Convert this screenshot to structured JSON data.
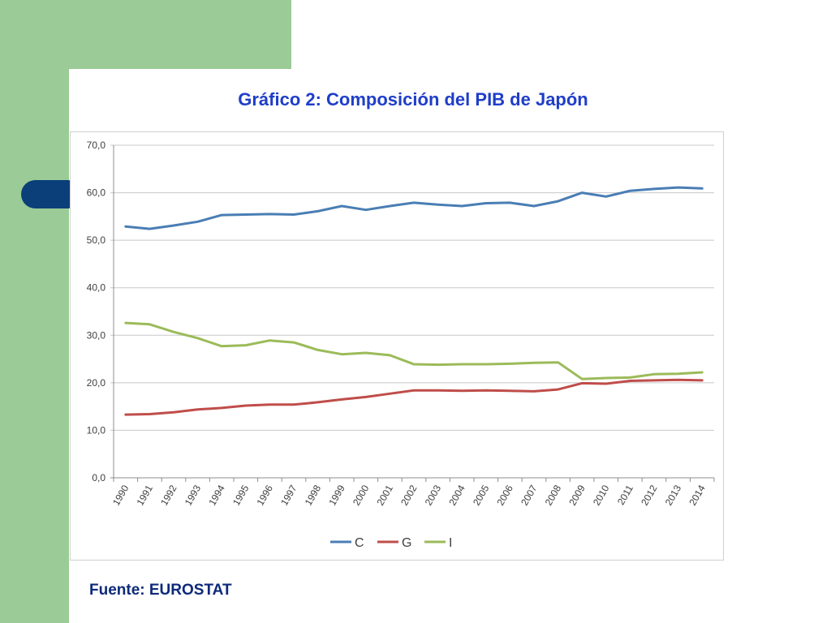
{
  "slide": {
    "title": "Gráfico 2: Composición del PIB de Japón",
    "source": "Fuente: EUROSTAT"
  },
  "colors": {
    "background_band": "#9bcb96",
    "accent_pill": "#0b3f7a",
    "title": "#1f3ec8",
    "series_C": "#4a7eb4",
    "series_G": "#bf4d4a",
    "series_I": "#9bbb59"
  },
  "chart_data": {
    "type": "line",
    "title": "",
    "xlabel": "",
    "ylabel": "",
    "ylim": [
      0,
      70
    ],
    "yticks": [
      "0,0",
      "10,0",
      "20,0",
      "30,0",
      "40,0",
      "50,0",
      "60,0",
      "70,0"
    ],
    "grid": true,
    "legend": "bottom",
    "categories": [
      "1990",
      "1991",
      "1992",
      "1993",
      "1994",
      "1995",
      "1996",
      "1997",
      "1998",
      "1999",
      "2000",
      "2001",
      "2002",
      "2003",
      "2004",
      "2005",
      "2006",
      "2007",
      "2008",
      "2009",
      "2010",
      "2011",
      "2012",
      "2013",
      "2014"
    ],
    "series": [
      {
        "name": "C",
        "color": "#4a7eb4",
        "values": [
          52.9,
          52.4,
          53.1,
          53.9,
          55.3,
          55.4,
          55.5,
          55.4,
          56.1,
          57.2,
          56.4,
          57.2,
          57.9,
          57.5,
          57.2,
          57.8,
          57.9,
          57.2,
          58.2,
          60.0,
          59.2,
          60.4,
          60.8,
          61.1,
          60.9
        ]
      },
      {
        "name": "G",
        "color": "#bf4d4a",
        "values": [
          13.3,
          13.4,
          13.8,
          14.4,
          14.7,
          15.2,
          15.4,
          15.4,
          15.9,
          16.5,
          17.0,
          17.7,
          18.4,
          18.4,
          18.3,
          18.4,
          18.3,
          18.2,
          18.6,
          19.9,
          19.8,
          20.4,
          20.5,
          20.6,
          20.5
        ]
      },
      {
        "name": "I",
        "color": "#9bbb59",
        "values": [
          32.6,
          32.3,
          30.7,
          29.4,
          27.7,
          27.9,
          28.9,
          28.5,
          26.9,
          26.0,
          26.3,
          25.8,
          23.9,
          23.8,
          23.9,
          23.9,
          24.0,
          24.2,
          24.3,
          20.8,
          21.0,
          21.1,
          21.8,
          21.9,
          22.2
        ]
      }
    ]
  }
}
